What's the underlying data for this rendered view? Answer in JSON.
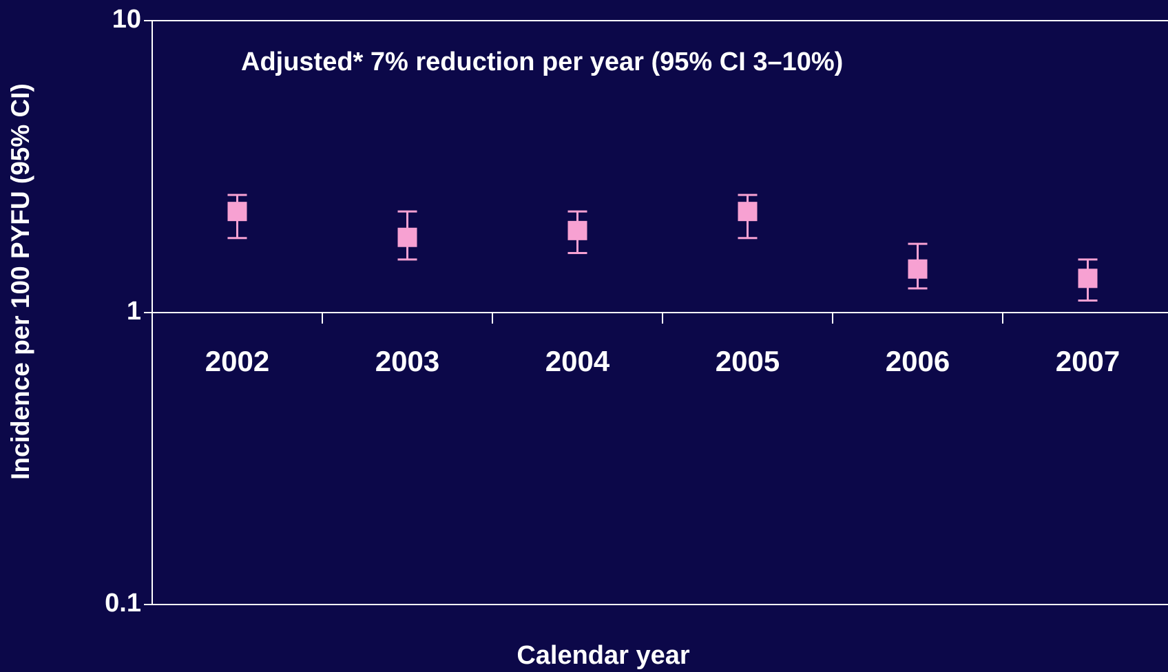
{
  "chart_data": {
    "type": "errorbar",
    "annotation": "Adjusted* 7% reduction per year (95% CI  3–10%)",
    "y_label": "Incidence per 100 PYFU (95% CI)",
    "x_label": "Calendar year",
    "categories": [
      "2002",
      "2003",
      "2004",
      "2005",
      "2006",
      "2007"
    ],
    "values": [
      2.22,
      1.81,
      1.91,
      2.22,
      1.41,
      1.31
    ],
    "lower": [
      1.8,
      1.52,
      1.6,
      1.8,
      1.21,
      1.1
    ],
    "upper": [
      2.53,
      2.22,
      2.22,
      2.53,
      1.72,
      1.52
    ],
    "color": "#f7a1d2",
    "log_y": true,
    "ylim": [
      0.1,
      10
    ],
    "yticks": [
      0.1,
      1,
      10
    ],
    "grid": true,
    "x_axis_crosses": 1
  }
}
